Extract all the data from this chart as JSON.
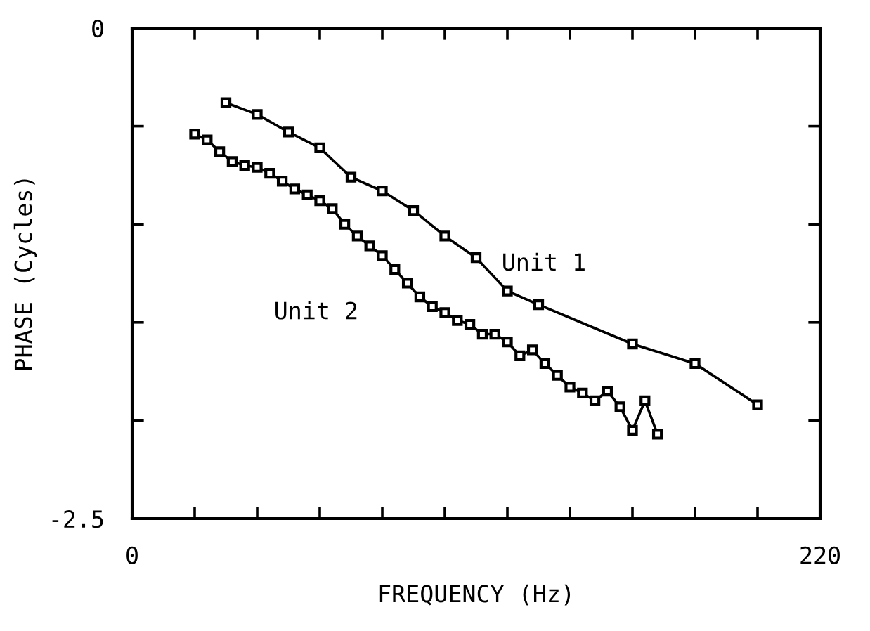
{
  "chart_data": {
    "type": "line",
    "xlabel": "FREQUENCY (Hz)",
    "ylabel": "PHASE (Cycles)",
    "xlim": [
      0,
      220
    ],
    "ylim": [
      -2.5,
      0
    ],
    "xticks": [
      0,
      {
        "value": 20,
        "label": null
      },
      {
        "value": 40,
        "label": null
      },
      {
        "value": 60,
        "label": null
      },
      {
        "value": 80,
        "label": null
      },
      {
        "value": 100,
        "label": null
      },
      {
        "value": 120,
        "label": null
      },
      {
        "value": 140,
        "label": null
      },
      {
        "value": 160,
        "label": null
      },
      {
        "value": 180,
        "label": null
      },
      {
        "value": 200,
        "label": null
      },
      220
    ],
    "yticks": [
      -2.5,
      {
        "value": -2.0,
        "label": null
      },
      {
        "value": -1.5,
        "label": null
      },
      {
        "value": -1.0,
        "label": null
      },
      {
        "value": -0.5,
        "label": null
      },
      0
    ],
    "marker": "square",
    "grid": false,
    "legend": false,
    "series": [
      {
        "name": "Unit 1",
        "color": "#000000",
        "x": [
          30,
          40,
          50,
          60,
          70,
          80,
          90,
          100,
          110,
          120,
          130,
          160,
          180,
          200
        ],
        "values": [
          -0.38,
          -0.44,
          -0.53,
          -0.61,
          -0.76,
          -0.83,
          -0.93,
          -1.06,
          -1.17,
          -1.34,
          -1.41,
          -1.61,
          -1.71,
          -1.92
        ]
      },
      {
        "name": "Unit 2",
        "color": "#000000",
        "x": [
          20,
          24,
          28,
          32,
          36,
          40,
          44,
          48,
          52,
          56,
          60,
          64,
          68,
          72,
          76,
          80,
          84,
          88,
          92,
          96,
          100,
          104,
          108,
          112,
          116,
          120,
          124,
          128,
          132,
          136,
          140,
          144,
          148,
          152,
          156,
          160,
          164,
          168
        ],
        "values": [
          -0.54,
          -0.57,
          -0.63,
          -0.68,
          -0.7,
          -0.71,
          -0.74,
          -0.78,
          -0.82,
          -0.85,
          -0.88,
          -0.92,
          -1.0,
          -1.06,
          -1.11,
          -1.16,
          -1.23,
          -1.3,
          -1.37,
          -1.42,
          -1.45,
          -1.49,
          -1.51,
          -1.56,
          -1.56,
          -1.6,
          -1.67,
          -1.64,
          -1.71,
          -1.77,
          -1.83,
          -1.86,
          -1.9,
          -1.85,
          -1.93,
          -2.05,
          -1.9,
          -2.07
        ]
      }
    ]
  }
}
